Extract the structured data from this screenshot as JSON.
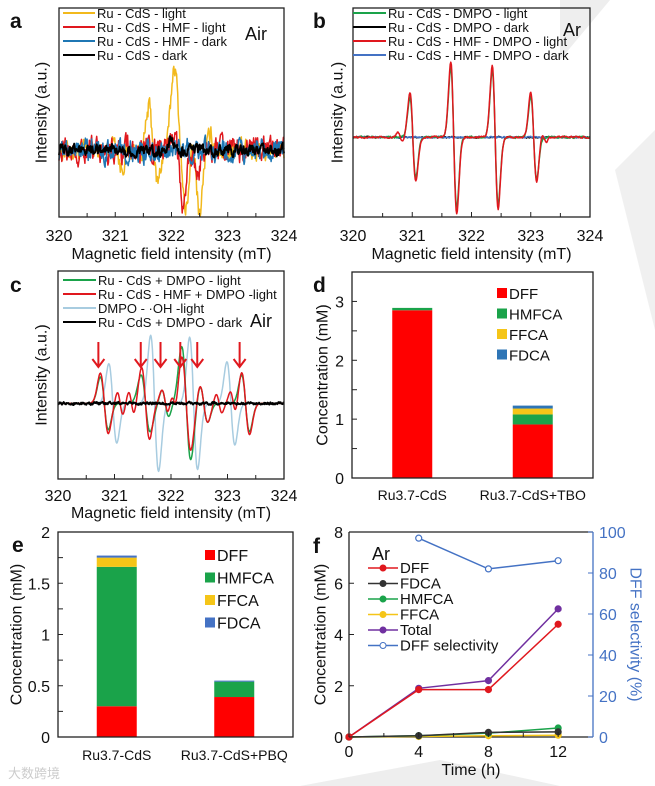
{
  "watermark": "大数跨境",
  "chart_data": [
    {
      "id": "a",
      "type": "line",
      "panel_label": "a",
      "annotation": "Air",
      "xlabel": "Magnetic field intensity (mT)",
      "ylabel": "Intensity (a.u.)",
      "xlim": [
        320,
        324
      ],
      "xticks": [
        320,
        321,
        322,
        323,
        324
      ],
      "ylim": [
        -0.7,
        1.5
      ],
      "series": [
        {
          "name": "Ru - CdS - light",
          "color": "#f2b91c",
          "noise": 0.09,
          "bumps": [
            [
              321.0,
              0.15,
              0.05
            ],
            [
              321.1,
              -0.2,
              0.05
            ],
            [
              321.6,
              0.45,
              0.05
            ],
            [
              321.75,
              -0.35,
              0.05
            ],
            [
              322.05,
              0.9,
              0.06
            ],
            [
              322.25,
              -0.65,
              0.05
            ],
            [
              322.5,
              -0.65,
              0.05
            ],
            [
              322.7,
              0.15,
              0.05
            ]
          ]
        },
        {
          "name": "Ru - CdS - HMF - light",
          "color": "#e0181e",
          "noise": 0.11,
          "bumps": [
            [
              322.05,
              0.25,
              0.05
            ],
            [
              322.2,
              -0.55,
              0.05
            ],
            [
              322.45,
              -0.3,
              0.05
            ]
          ]
        },
        {
          "name": "Ru - CdS - HMF - dark",
          "color": "#1f77b4",
          "noise": 0.1,
          "bumps": []
        },
        {
          "name": "Ru - CdS - dark",
          "color": "#000000",
          "noise": 0.05,
          "bumps": [
            [
              322.0,
              0.12,
              0.05
            ]
          ]
        }
      ]
    },
    {
      "id": "b",
      "type": "line",
      "panel_label": "b",
      "annotation": "Ar",
      "xlabel": "Magnetic field intensity (mT)",
      "ylabel": "Intensity (a.u.)",
      "xlim": [
        320,
        324
      ],
      "xticks": [
        320,
        321,
        322,
        323,
        324
      ],
      "ylim": [
        -1.0,
        1.62
      ],
      "series": [
        {
          "name": "Ru - CdS - DMPO  - light",
          "color": "#1aa34a",
          "noise": 0.01,
          "lines": [
            [
              321.01,
              0.5,
              0.05
            ],
            [
              321.7,
              0.88,
              0.05
            ],
            [
              322.4,
              0.84,
              0.05
            ],
            [
              323.05,
              0.52,
              0.05
            ]
          ]
        },
        {
          "name": "Ru - CdS - DMPO - dark",
          "color": "#000000",
          "noise": 0.008,
          "lines": []
        },
        {
          "name": "Ru - CdS - HMF - DMPO - light",
          "color": "#e0181e",
          "noise": 0.01,
          "lines": [
            [
              320.8,
              0.06,
              0.04
            ],
            [
              321.01,
              0.56,
              0.05
            ],
            [
              321.7,
              0.95,
              0.05
            ],
            [
              322.4,
              0.9,
              0.05
            ],
            [
              323.05,
              0.56,
              0.05
            ],
            [
              323.22,
              0.06,
              0.04
            ]
          ]
        },
        {
          "name": "Ru - CdS - HMF - DMPO - dark",
          "color": "#4472c4",
          "noise": 0.008,
          "lines": []
        }
      ]
    },
    {
      "id": "c",
      "type": "line",
      "panel_label": "c",
      "annotation": "Air",
      "xlabel": "Magnetic field intensity (mT)",
      "ylabel": "Intensity (a.u.)",
      "xlim": [
        320,
        324
      ],
      "xticks": [
        320,
        321,
        322,
        323,
        324
      ],
      "ylim": [
        -0.8,
        1.4
      ],
      "arrows_at": [
        320.75,
        321.5,
        321.85,
        322.2,
        322.5,
        323.25
      ],
      "series": [
        {
          "name": "DMPO - ·OH -light",
          "color": "#a8cce0",
          "noise": 0.0,
          "lines": [
            [
              320.97,
              0.42,
              0.07
            ],
            [
              321.71,
              0.72,
              0.07
            ],
            [
              322.4,
              0.7,
              0.07
            ],
            [
              323.06,
              0.44,
              0.07
            ]
          ]
        },
        {
          "name": "Ru - CdS + DMPO - light",
          "color": "#1aa34a",
          "noise": 0.0,
          "lines": [
            [
              320.82,
              0.28,
              0.07
            ],
            [
              321.55,
              0.3,
              0.08
            ],
            [
              321.9,
              0.14,
              0.06
            ],
            [
              322.27,
              0.6,
              0.08
            ],
            [
              322.58,
              0.2,
              0.07
            ],
            [
              323.32,
              0.3,
              0.07
            ]
          ]
        },
        {
          "name": "Ru - CdS - HMF + DMPO -light",
          "color": "#e0181e",
          "noise": 0.0,
          "lines": [
            [
              320.82,
              0.32,
              0.07
            ],
            [
              321.1,
              0.12,
              0.05
            ],
            [
              321.3,
              0.12,
              0.05
            ],
            [
              321.55,
              0.38,
              0.07
            ],
            [
              321.9,
              0.14,
              0.06
            ],
            [
              322.05,
              0.12,
              0.05
            ],
            [
              322.27,
              0.5,
              0.08
            ],
            [
              322.58,
              0.2,
              0.07
            ],
            [
              322.85,
              0.1,
              0.05
            ],
            [
              323.1,
              0.12,
              0.05
            ],
            [
              323.32,
              0.33,
              0.07
            ]
          ]
        },
        {
          "name": "Ru - CdS + DMPO - dark",
          "color": "#000000",
          "noise": 0.012,
          "lines": []
        }
      ]
    },
    {
      "id": "d",
      "type": "bar",
      "stacked": true,
      "panel_label": "d",
      "ylabel": "Concentration (mM)",
      "ylim": [
        0,
        3.5
      ],
      "yticks": [
        0,
        1,
        2,
        3
      ],
      "categories": [
        "Ru3.7-CdS",
        "Ru3.7-CdS+TBO"
      ],
      "series": [
        {
          "name": "DFF",
          "color": "#ff0000",
          "values": [
            2.85,
            0.91
          ]
        },
        {
          "name": "HMFCA",
          "color": "#1aa34a",
          "values": [
            0.04,
            0.17
          ]
        },
        {
          "name": "FFCA",
          "color": "#f5c518",
          "values": [
            0.0,
            0.1
          ]
        },
        {
          "name": "FDCA",
          "color": "#2e75b6",
          "values": [
            0.0,
            0.05
          ]
        }
      ]
    },
    {
      "id": "e",
      "type": "bar",
      "stacked": true,
      "panel_label": "e",
      "ylabel": "Concentration (mM)",
      "ylim": [
        0,
        2
      ],
      "yticks": [
        0,
        0.5,
        1,
        1.5,
        2
      ],
      "categories": [
        "Ru3.7-CdS",
        "Ru3.7-CdS+PBQ"
      ],
      "series": [
        {
          "name": "DFF",
          "color": "#ff0000",
          "values": [
            0.3,
            0.39
          ]
        },
        {
          "name": "HMFCA",
          "color": "#1aa34a",
          "values": [
            1.36,
            0.15
          ]
        },
        {
          "name": "FFCA",
          "color": "#f5c518",
          "values": [
            0.09,
            0.0
          ]
        },
        {
          "name": "FDCA",
          "color": "#4472c4",
          "values": [
            0.02,
            0.01
          ]
        }
      ]
    },
    {
      "id": "f",
      "type": "line",
      "panel_label": "f",
      "annotation": "Ar",
      "xlabel": "Time (h)",
      "ylabel": "Concentration (mM)",
      "y2label": "DFF selectivity (%)",
      "xlim": [
        0,
        14
      ],
      "xticks": [
        0,
        4,
        8,
        12
      ],
      "ylim": [
        0,
        8
      ],
      "yticks": [
        0,
        2,
        4,
        6,
        8
      ],
      "y2lim": [
        0,
        100
      ],
      "y2ticks": [
        0,
        20,
        40,
        60,
        80,
        100
      ],
      "series": [
        {
          "name": "DFF",
          "color": "#e0181e",
          "axis": "left",
          "x": [
            0,
            4,
            8,
            12
          ],
          "y": [
            0,
            1.85,
            1.85,
            4.4
          ]
        },
        {
          "name": "FDCA",
          "color": "#333333",
          "axis": "left",
          "x": [
            0,
            4,
            8,
            12
          ],
          "y": [
            0,
            0.05,
            0.18,
            0.2
          ]
        },
        {
          "name": "HMFCA",
          "color": "#1aa34a",
          "axis": "left",
          "x": [
            0,
            4,
            8,
            12
          ],
          "y": [
            0,
            0.05,
            0.15,
            0.35
          ]
        },
        {
          "name": "FFCA",
          "color": "#f5c518",
          "axis": "left",
          "x": [
            0,
            4,
            8,
            12
          ],
          "y": [
            0,
            0.02,
            0.05,
            0.07
          ]
        },
        {
          "name": "Total",
          "color": "#7030a0",
          "axis": "left",
          "x": [
            0,
            4,
            8,
            12
          ],
          "y": [
            0,
            1.9,
            2.2,
            5.0
          ]
        },
        {
          "name": "DFF selectivity",
          "color": "#4472c4",
          "axis": "right",
          "hollow": true,
          "x": [
            4,
            8,
            12
          ],
          "y": [
            97,
            82,
            86
          ]
        }
      ]
    }
  ]
}
